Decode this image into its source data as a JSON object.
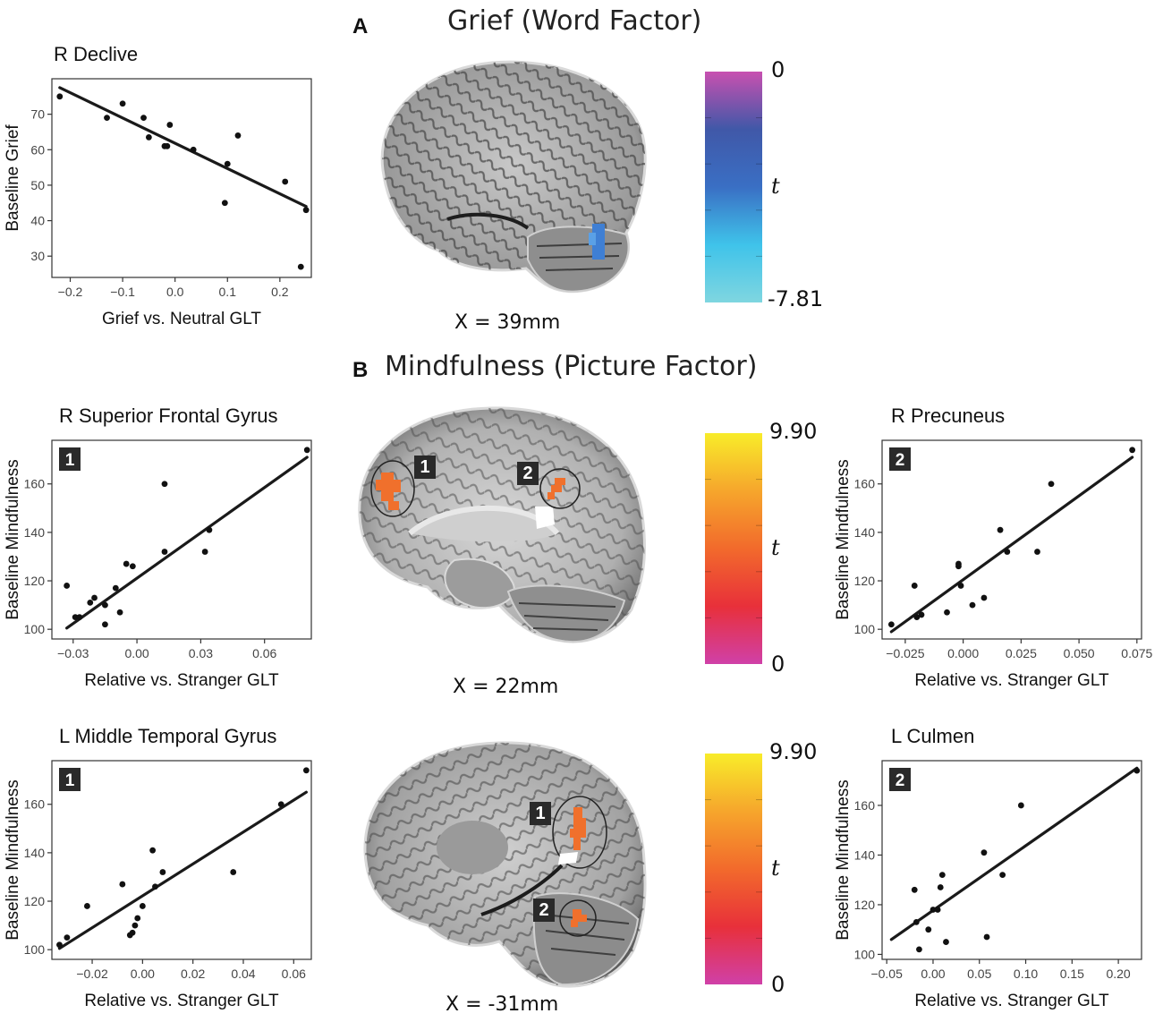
{
  "panel_a": {
    "letter": "A",
    "title": "Grief (Word Factor)",
    "coord_label": "X = 39mm",
    "colorbar": {
      "top_label": "0",
      "mid_label": "t",
      "bottom_label": "-7.81",
      "colors": [
        "#c850b0",
        "#4058a8",
        "#3a6fc4",
        "#3fc3ea",
        "#7fd6e0"
      ]
    }
  },
  "panel_b": {
    "letter": "B",
    "title": "Mindfulness (Picture Factor)",
    "sagittal_top": {
      "coord_label": "X = 22mm",
      "roi1": "1",
      "roi2": "2"
    },
    "sagittal_bottom": {
      "coord_label": "X = -31mm",
      "roi1": "1",
      "roi2": "2"
    },
    "colorbar_top": {
      "top_label": "9.90",
      "mid_label": "t",
      "bottom_label": "0",
      "colors": [
        "#f8ec2a",
        "#f6a62c",
        "#f26a2c",
        "#e8303a",
        "#d040a8"
      ]
    },
    "colorbar_bottom": {
      "top_label": "9.90",
      "mid_label": "t",
      "bottom_label": "0",
      "colors": [
        "#f8ec2a",
        "#f6a62c",
        "#f26a2c",
        "#e8303a",
        "#d040a8"
      ]
    }
  },
  "chart_data": [
    {
      "id": "p1",
      "type": "scatter",
      "title": "R Declive",
      "badge": "",
      "xlabel": "Grief vs. Neutral GLT",
      "ylabel": "Baseline Grief",
      "xlim": [
        -0.235,
        0.26
      ],
      "ylim": [
        24,
        80
      ],
      "xticks": [
        -0.2,
        -0.1,
        0.0,
        0.1,
        0.2
      ],
      "xtick_labels": [
        "−0.2",
        "−0.1",
        "0.0",
        "0.1",
        "0.2"
      ],
      "yticks": [
        30,
        40,
        50,
        60,
        70
      ],
      "ytick_labels": [
        "30",
        "40",
        "50",
        "60",
        "70"
      ],
      "points": [
        [
          -0.22,
          75
        ],
        [
          -0.13,
          69
        ],
        [
          -0.1,
          73
        ],
        [
          -0.06,
          69
        ],
        [
          -0.05,
          63.5
        ],
        [
          -0.02,
          61
        ],
        [
          -0.015,
          61
        ],
        [
          -0.01,
          67
        ],
        [
          0.035,
          60
        ],
        [
          0.095,
          45
        ],
        [
          0.1,
          56
        ],
        [
          0.12,
          64
        ],
        [
          0.21,
          51
        ],
        [
          0.24,
          27
        ],
        [
          0.25,
          43
        ]
      ],
      "fit": [
        [
          -0.22,
          77.5
        ],
        [
          0.25,
          44
        ]
      ]
    },
    {
      "id": "p2",
      "type": "scatter",
      "title": "R Superior Frontal Gyrus",
      "badge": "1",
      "xlabel": "Relative vs. Stranger GLT",
      "ylabel": "Baseline Mindfulness",
      "xlim": [
        -0.04,
        0.082
      ],
      "ylim": [
        96,
        178
      ],
      "xticks": [
        -0.03,
        0.0,
        0.03,
        0.06
      ],
      "xtick_labels": [
        "−0.03",
        "0.00",
        "0.03",
        "0.06"
      ],
      "yticks": [
        100,
        120,
        140,
        160
      ],
      "ytick_labels": [
        "100",
        "120",
        "140",
        "160"
      ],
      "points": [
        [
          -0.033,
          118
        ],
        [
          -0.029,
          105
        ],
        [
          -0.027,
          105
        ],
        [
          -0.022,
          111
        ],
        [
          -0.02,
          113
        ],
        [
          -0.015,
          102
        ],
        [
          -0.015,
          110
        ],
        [
          -0.01,
          117
        ],
        [
          -0.008,
          107
        ],
        [
          -0.005,
          127
        ],
        [
          -0.002,
          126
        ],
        [
          0.013,
          132
        ],
        [
          0.013,
          160
        ],
        [
          0.032,
          132
        ],
        [
          0.034,
          141
        ],
        [
          0.08,
          174
        ]
      ],
      "fit": [
        [
          -0.033,
          100.5
        ],
        [
          0.08,
          171
        ]
      ]
    },
    {
      "id": "p3",
      "type": "scatter",
      "title": "R Precuneus",
      "badge": "2",
      "xlabel": "Relative vs. Stranger GLT",
      "ylabel": "Baseline Mindfulness",
      "xlim": [
        -0.035,
        0.077
      ],
      "ylim": [
        96,
        178
      ],
      "xticks": [
        -0.025,
        0.0,
        0.025,
        0.05,
        0.075
      ],
      "xtick_labels": [
        "−0.025",
        "0.000",
        "0.025",
        "0.050",
        "0.075"
      ],
      "yticks": [
        100,
        120,
        140,
        160
      ],
      "ytick_labels": [
        "100",
        "120",
        "140",
        "160"
      ],
      "points": [
        [
          -0.031,
          102
        ],
        [
          -0.021,
          118
        ],
        [
          -0.02,
          105
        ],
        [
          -0.018,
          106
        ],
        [
          -0.007,
          107
        ],
        [
          -0.002,
          126
        ],
        [
          -0.002,
          127
        ],
        [
          -0.001,
          118
        ],
        [
          0.004,
          110
        ],
        [
          0.009,
          113
        ],
        [
          0.016,
          141
        ],
        [
          0.019,
          132
        ],
        [
          0.032,
          132
        ],
        [
          0.038,
          160
        ],
        [
          0.073,
          174
        ]
      ],
      "fit": [
        [
          -0.031,
          99
        ],
        [
          0.073,
          171
        ]
      ]
    },
    {
      "id": "p4",
      "type": "scatter",
      "title": "L Middle Temporal Gyrus",
      "badge": "1",
      "xlabel": "Relative vs. Stranger GLT",
      "ylabel": "Baseline Mindfulness",
      "xlim": [
        -0.036,
        0.067
      ],
      "ylim": [
        96,
        178
      ],
      "xticks": [
        -0.02,
        0.0,
        0.02,
        0.04,
        0.06
      ],
      "xtick_labels": [
        "−0.02",
        "0.00",
        "0.02",
        "0.04",
        "0.06"
      ],
      "yticks": [
        100,
        120,
        140,
        160
      ],
      "ytick_labels": [
        "100",
        "120",
        "140",
        "160"
      ],
      "points": [
        [
          -0.033,
          102
        ],
        [
          -0.03,
          105
        ],
        [
          -0.022,
          118
        ],
        [
          -0.008,
          127
        ],
        [
          -0.005,
          106
        ],
        [
          -0.004,
          107
        ],
        [
          -0.003,
          110
        ],
        [
          -0.002,
          113
        ],
        [
          0.0,
          118
        ],
        [
          0.004,
          141
        ],
        [
          0.005,
          126
        ],
        [
          0.008,
          132
        ],
        [
          0.036,
          132
        ],
        [
          0.055,
          160
        ],
        [
          0.065,
          174
        ]
      ],
      "fit": [
        [
          -0.033,
          100.5
        ],
        [
          0.065,
          165
        ]
      ]
    },
    {
      "id": "p5",
      "type": "scatter",
      "title": "L Culmen",
      "badge": "2",
      "xlabel": "Relative vs. Stranger GLT",
      "ylabel": "Baseline Mindfulness",
      "xlim": [
        -0.055,
        0.225
      ],
      "ylim": [
        98,
        178
      ],
      "xticks": [
        -0.05,
        0.0,
        0.05,
        0.1,
        0.15,
        0.2
      ],
      "xtick_labels": [
        "−0.05",
        "0.00",
        "0.05",
        "0.10",
        "0.15",
        "0.20"
      ],
      "yticks": [
        100,
        120,
        140,
        160
      ],
      "ytick_labels": [
        "100",
        "120",
        "140",
        "160"
      ],
      "points": [
        [
          -0.02,
          126
        ],
        [
          -0.018,
          113
        ],
        [
          -0.015,
          102
        ],
        [
          -0.005,
          110
        ],
        [
          0.0,
          118
        ],
        [
          0.005,
          118
        ],
        [
          0.008,
          127
        ],
        [
          0.01,
          132
        ],
        [
          0.014,
          105
        ],
        [
          0.055,
          141
        ],
        [
          0.058,
          107
        ],
        [
          0.075,
          132
        ],
        [
          0.095,
          160
        ],
        [
          0.22,
          174
        ]
      ],
      "fit": [
        [
          -0.045,
          106
        ],
        [
          0.22,
          175
        ]
      ]
    }
  ]
}
